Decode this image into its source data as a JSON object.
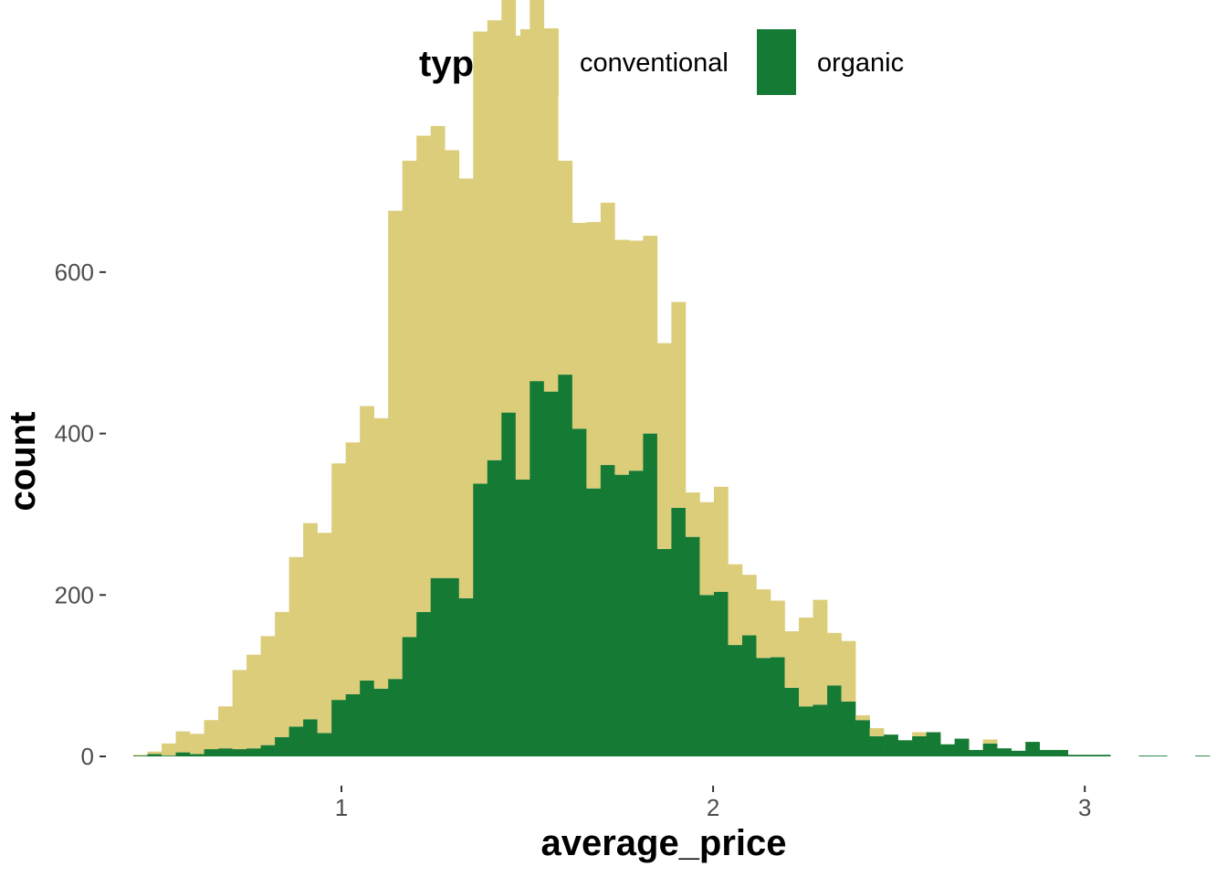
{
  "chart_data": {
    "type": "bar",
    "subtype": "stacked-histogram",
    "xlabel": "average_price",
    "ylabel": "count",
    "xlim": [
      0.44,
      3.25
    ],
    "ylim": [
      0,
      730
    ],
    "x_ticks": [
      1,
      2,
      3
    ],
    "y_ticks": [
      0,
      200,
      400,
      600
    ],
    "grid": false,
    "legend": {
      "title": "type",
      "position": "top"
    },
    "bin_start": 0.44,
    "bin_width": 0.0381,
    "series": [
      {
        "name": "conventional",
        "color": "#DCCD7A",
        "values": [
          1,
          3,
          15,
          26,
          25,
          36,
          52,
          98,
          116,
          135,
          155,
          210,
          243,
          248,
          293,
          312,
          340,
          335,
          580,
          590,
          590,
          560,
          530,
          520,
          560,
          545,
          640,
          550,
          575,
          450,
          265,
          255,
          330,
          325,
          291,
          285,
          245,
          255,
          255,
          55,
          115,
          130,
          100,
          75,
          85,
          70,
          70,
          110,
          130,
          65,
          75,
          6,
          10,
          0,
          0,
          5,
          0,
          0,
          0,
          0,
          5,
          0,
          0,
          0,
          0,
          0,
          0,
          0,
          0,
          0,
          0,
          0,
          0,
          0,
          0,
          0
        ]
      },
      {
        "name": "organic",
        "color": "#157A34",
        "values": [
          1,
          3,
          1,
          5,
          3,
          9,
          10,
          9,
          10,
          14,
          24,
          37,
          46,
          29,
          70,
          77,
          94,
          84,
          96,
          148,
          179,
          221,
          221,
          196,
          338,
          367,
          426,
          343,
          465,
          452,
          473,
          406,
          332,
          361,
          349,
          354,
          400,
          257,
          308,
          272,
          200,
          204,
          138,
          150,
          122,
          123,
          85,
          62,
          64,
          88,
          68,
          45,
          25,
          27,
          20,
          25,
          30,
          15,
          22,
          8,
          16,
          10,
          7,
          18,
          8,
          8,
          2,
          2,
          2,
          0,
          0,
          1,
          1,
          0,
          0,
          1
        ]
      }
    ]
  }
}
